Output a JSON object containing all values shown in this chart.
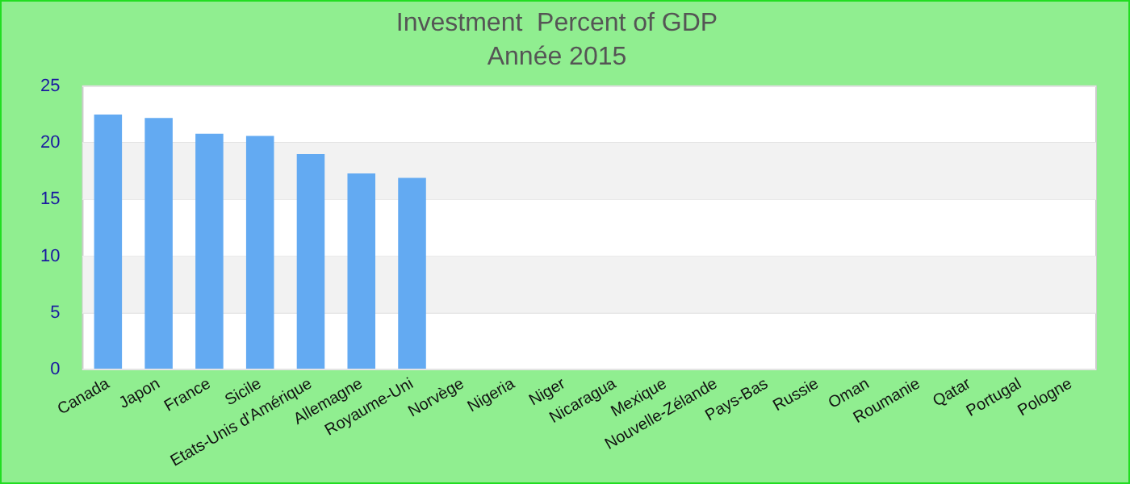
{
  "chart_data": {
    "type": "bar",
    "title": "Investment  Percent of GDP",
    "subtitle": "Année 2015",
    "categories": [
      "Canada",
      "Japon",
      "France",
      "Sicile",
      "Etats-Unis d'Amérique",
      "Allemagne",
      "Royaume-Uni",
      "Norvège",
      "Nigeria",
      "Niger",
      "Nicaragua",
      "Mexique",
      "Nouvelle-Zélande",
      "Pays-Bas",
      "Russie",
      "Oman",
      "Roumanie",
      "Qatar",
      "Portugal",
      "Pologne"
    ],
    "values": [
      22.5,
      22.2,
      20.8,
      20.6,
      19.0,
      17.3,
      16.9,
      null,
      null,
      null,
      null,
      null,
      null,
      null,
      null,
      null,
      null,
      null,
      null,
      null
    ],
    "color": "#63aaf2",
    "ylim": [
      0,
      25
    ],
    "yticks": [
      0,
      5,
      10,
      15,
      20,
      25
    ],
    "grid": "y",
    "legend": false
  }
}
